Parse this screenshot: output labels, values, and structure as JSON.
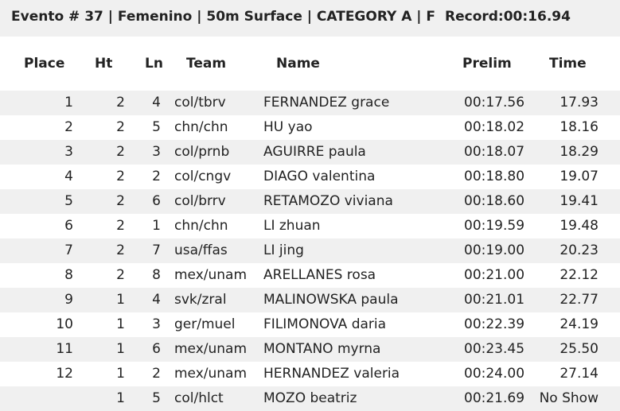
{
  "header": {
    "title": "Evento # 37 | Femenino | 50m Surface | CATEGORY A | F",
    "record": "Record:00:16.94"
  },
  "table": {
    "columns": [
      "Place",
      "Ht",
      "Ln",
      "Team",
      "Name",
      "Prelim",
      "Time"
    ],
    "rows": [
      [
        "1",
        "2",
        "4",
        "col/tbrv",
        "FERNANDEZ grace",
        "00:17.56",
        "17.93"
      ],
      [
        "2",
        "2",
        "5",
        "chn/chn",
        "HU yao",
        "00:18.02",
        "18.16"
      ],
      [
        "3",
        "2",
        "3",
        "col/prnb",
        "AGUIRRE paula",
        "00:18.07",
        "18.29"
      ],
      [
        "4",
        "2",
        "2",
        "col/cngv",
        "DIAGO valentina",
        "00:18.80",
        "19.07"
      ],
      [
        "5",
        "2",
        "6",
        "col/brrv",
        "RETAMOZO viviana",
        "00:18.60",
        "19.41"
      ],
      [
        "6",
        "2",
        "1",
        "chn/chn",
        "LI zhuan",
        "00:19.59",
        "19.48"
      ],
      [
        "7",
        "2",
        "7",
        "usa/ffas",
        "LI jing",
        "00:19.00",
        "20.23"
      ],
      [
        "8",
        "2",
        "8",
        "mex/unam",
        "ARELLANES rosa",
        "00:21.00",
        "22.12"
      ],
      [
        "9",
        "1",
        "4",
        "svk/zral",
        "MALINOWSKA paula",
        "00:21.01",
        "22.77"
      ],
      [
        "10",
        "1",
        "3",
        "ger/muel",
        "FILIMONOVA daria",
        "00:22.39",
        "24.19"
      ],
      [
        "11",
        "1",
        "6",
        "mex/unam",
        "MONTANO myrna",
        "00:23.45",
        "25.50"
      ],
      [
        "12",
        "1",
        "2",
        "mex/unam",
        "HERNANDEZ valeria",
        "00:24.00",
        "27.14"
      ],
      [
        null,
        "1",
        "5",
        "col/hlct",
        "MOZO beatriz",
        "00:21.69",
        "No Show"
      ]
    ]
  }
}
